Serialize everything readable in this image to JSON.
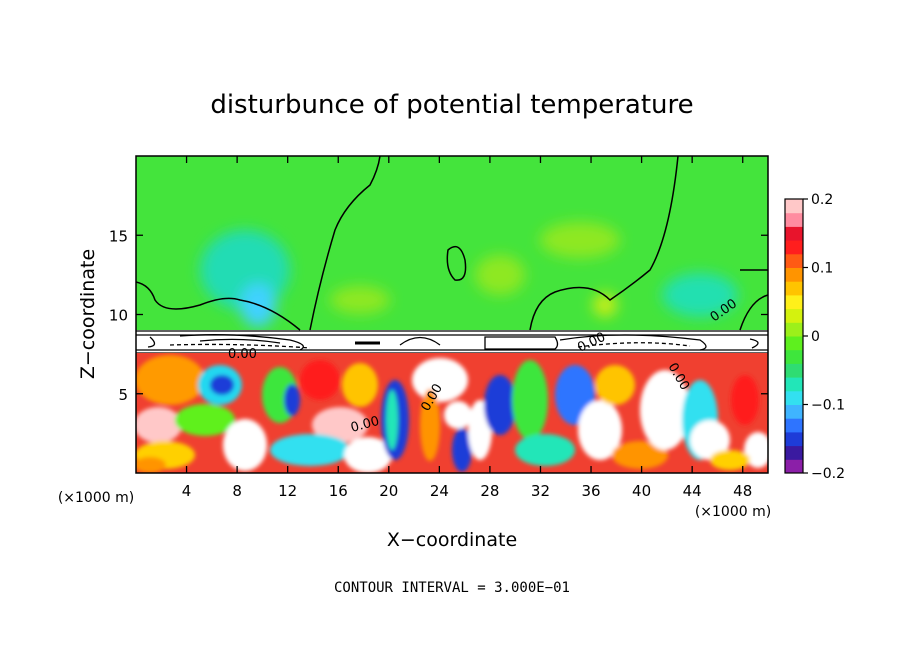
{
  "chart_data": {
    "type": "heatmap",
    "title": "disturbunce of potential temperature",
    "xlabel": "X−coordinate",
    "ylabel": "Z−coordinate",
    "x_unit": "(×1000 m)",
    "x_unit_right": "(×1000 m)",
    "xlim": [
      0,
      50
    ],
    "ylim": [
      0,
      20
    ],
    "xticks": [
      "4",
      "8",
      "12",
      "16",
      "20",
      "24",
      "28",
      "32",
      "36",
      "40",
      "44",
      "48"
    ],
    "xtick_values": [
      4,
      8,
      12,
      16,
      20,
      24,
      28,
      32,
      36,
      40,
      44,
      48
    ],
    "yticks": [
      "5",
      "10",
      "15"
    ],
    "ytick_values": [
      5,
      10,
      15
    ],
    "colorbar": {
      "min": -0.2,
      "max": 0.2,
      "tick_labels": [
        "0.2",
        "0.1",
        "0",
        "−0.1",
        "−0.2"
      ],
      "tick_values": [
        0.2,
        0.1,
        0,
        -0.1,
        -0.2
      ],
      "colors": [
        "#8b1fa8",
        "#3a1aa0",
        "#1e3cd8",
        "#2e74ff",
        "#3fb4ff",
        "#33e0f0",
        "#22e6b8",
        "#2fdc72",
        "#3ee63c",
        "#5ef01e",
        "#9cf01a",
        "#d4f20e",
        "#fff01a",
        "#ffc400",
        "#ff9400",
        "#ff5a14",
        "#ff1e1e",
        "#e8142c",
        "#ff8ca0",
        "#ffc8c8"
      ]
    },
    "contour_labels": [
      "0.00",
      "0.00",
      "0.00",
      "0.00",
      "0.00",
      "0.00"
    ],
    "footer": "CONTOUR INTERVAL = 3.000E−01"
  }
}
